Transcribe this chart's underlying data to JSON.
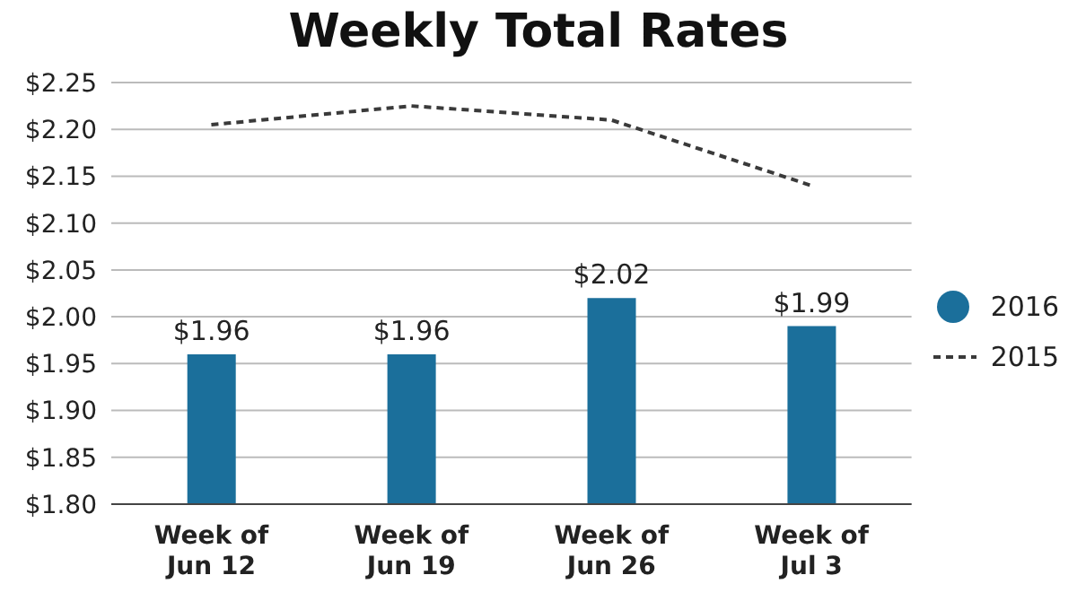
{
  "chart_data": {
    "type": "bar",
    "title": "Weekly Total Rates",
    "categories": [
      "Week of\nJun 12",
      "Week of\nJun 19",
      "Week of\nJun 26",
      "Week of\nJul 3"
    ],
    "series": [
      {
        "name": "2016",
        "color": "#1b6f9b",
        "values": [
          1.96,
          1.96,
          2.02,
          1.99
        ],
        "value_labels": [
          "$1.96",
          "$1.96",
          "$2.02",
          "$1.99"
        ]
      },
      {
        "name": "2015",
        "type": "line",
        "color": "#3a3a3a",
        "line_style": "dashed",
        "marker": "none",
        "values": [
          2.205,
          2.225,
          2.21,
          2.14
        ]
      }
    ],
    "ylim": [
      1.8,
      2.25
    ],
    "yticks": [
      {
        "value": 1.8,
        "label": "$1.80"
      },
      {
        "value": 1.85,
        "label": "$1.85"
      },
      {
        "value": 1.9,
        "label": "$1.90"
      },
      {
        "value": 1.95,
        "label": "$1.95"
      },
      {
        "value": 2.0,
        "label": "$2.00"
      },
      {
        "value": 2.05,
        "label": "$2.05"
      },
      {
        "value": 2.1,
        "label": "$2.10"
      },
      {
        "value": 2.15,
        "label": "$2.15"
      },
      {
        "value": 2.2,
        "label": "$2.20"
      },
      {
        "value": 2.25,
        "label": "$2.25"
      }
    ],
    "grid": "y",
    "legend": "right"
  }
}
